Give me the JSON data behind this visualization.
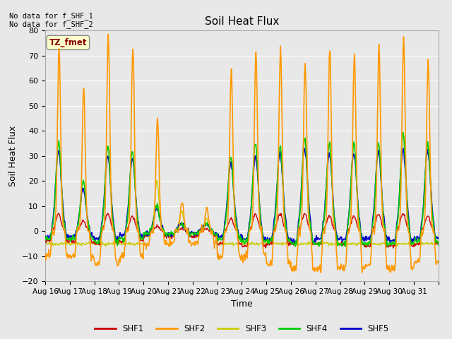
{
  "title": "Soil Heat Flux",
  "ylabel": "Soil Heat Flux",
  "xlabel": "Time",
  "no_data_text_1": "No data for f_SHF_1",
  "no_data_text_2": "No data for f_SHF_2",
  "tz_label": "TZ_fmet",
  "ylim": [
    -20,
    80
  ],
  "yticks": [
    -20,
    -10,
    0,
    10,
    20,
    30,
    40,
    50,
    60,
    70,
    80
  ],
  "x_labels": [
    "Aug 16",
    "Aug 17",
    "Aug 18",
    "Aug 19",
    "Aug 20",
    "Aug 21",
    "Aug 22",
    "Aug 23",
    "Aug 24",
    "Aug 25",
    "Aug 26",
    "Aug 27",
    "Aug 28",
    "Aug 29",
    "Aug 30",
    "Aug 31"
  ],
  "n_days": 16,
  "series_colors": {
    "SHF1": "#cc0000",
    "SHF2": "#ff9900",
    "SHF3": "#cccc00",
    "SHF4": "#00cc00",
    "SHF5": "#0000cc"
  },
  "background_color": "#e8e8e8",
  "plot_bg_color": "#e8e8e8",
  "grid_color": "#ffffff"
}
